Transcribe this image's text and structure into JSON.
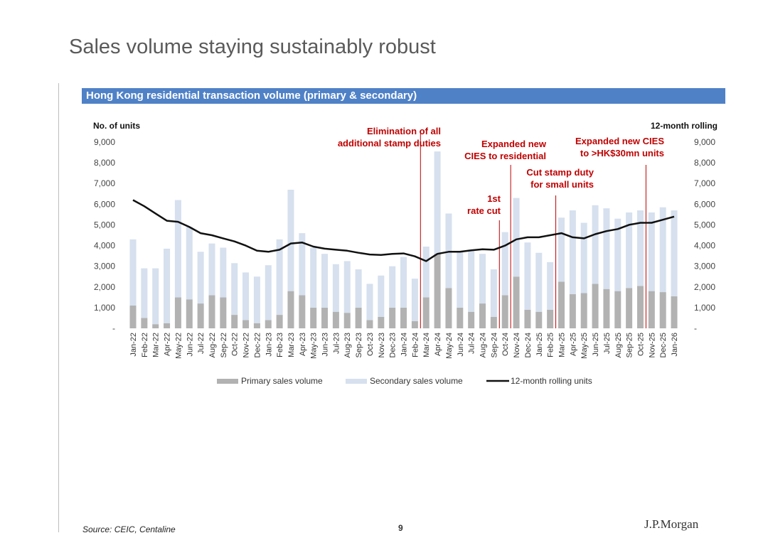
{
  "page": {
    "title": "Sales volume staying sustainably robust",
    "source": "Source: CEIC, Centaline",
    "page_number": "9",
    "logo_text": "J.P.Morgan"
  },
  "chart_data": {
    "type": "bar",
    "stacked": true,
    "title": "Hong Kong residential transaction volume (primary & secondary)",
    "ylabel": "No. of units",
    "y2label": "12-month rolling",
    "ylim": [
      0,
      9000
    ],
    "y_ticks": [
      0,
      1000,
      2000,
      3000,
      4000,
      5000,
      6000,
      7000,
      8000,
      9000
    ],
    "y_tick_labels": [
      "-",
      "1,000",
      "2,000",
      "3,000",
      "4,000",
      "5,000",
      "6,000",
      "7,000",
      "8,000",
      "9,000"
    ],
    "categories": [
      "Jan-22",
      "Feb-22",
      "Mar-22",
      "Apr-22",
      "May-22",
      "Jun-22",
      "Jul-22",
      "Aug-22",
      "Sep-22",
      "Oct-22",
      "Nov-22",
      "Dec-22",
      "Jan-23",
      "Feb-23",
      "Mar-23",
      "Apr-23",
      "May-23",
      "Jun-23",
      "Jul-23",
      "Aug-23",
      "Sep-23",
      "Oct-23",
      "Nov-23",
      "Dec-23",
      "Jan-24",
      "Feb-24",
      "Mar-24",
      "Apr-24",
      "May-24",
      "Jun-24",
      "Jul-24",
      "Aug-24",
      "Sep-24",
      "Oct-24",
      "Nov-24",
      "Dec-24",
      "Jan-25",
      "Feb-25",
      "Mar-25",
      "Apr-25",
      "May-25",
      "Jun-25",
      "Jul-25",
      "Aug-25",
      "Sep-25",
      "Oct-25",
      "Nov-25",
      "Dec-25",
      "Jan-26"
    ],
    "series": [
      {
        "name": "Primary sales volume",
        "kind": "bar",
        "color": "#b2b2b2",
        "values": [
          1100,
          500,
          200,
          250,
          1500,
          1400,
          1200,
          1600,
          1500,
          650,
          400,
          250,
          400,
          650,
          1800,
          1600,
          1000,
          1000,
          800,
          750,
          1000,
          400,
          550,
          1000,
          1000,
          350,
          1500,
          3600,
          1950,
          1000,
          800,
          1200,
          550,
          1600,
          2500,
          900,
          800,
          900,
          2250,
          1650,
          1700,
          2150,
          1900,
          1800,
          1950,
          2050,
          1800,
          1750,
          1550
        ]
      },
      {
        "name": "Secondary sales volume",
        "kind": "bar",
        "color": "#d6e0ee",
        "values": [
          3200,
          2400,
          2700,
          3600,
          4700,
          3500,
          2500,
          2500,
          2400,
          2500,
          2300,
          2250,
          2650,
          3650,
          4900,
          3000,
          2900,
          2600,
          2300,
          2500,
          1850,
          1750,
          2000,
          2000,
          2450,
          2050,
          2450,
          4950,
          3600,
          2700,
          3000,
          2400,
          2300,
          3050,
          3800,
          3250,
          2850,
          2300,
          3100,
          4050,
          3400,
          3800,
          3900,
          3500,
          3650,
          3650,
          3800,
          4100,
          4150
        ]
      },
      {
        "name": "12-month rolling units",
        "kind": "line",
        "color": "#111111",
        "values": [
          6200,
          5900,
          5550,
          5200,
          5150,
          4900,
          4600,
          4500,
          4350,
          4200,
          4000,
          3750,
          3700,
          3800,
          4100,
          4150,
          3950,
          3850,
          3800,
          3750,
          3650,
          3570,
          3550,
          3600,
          3620,
          3480,
          3250,
          3600,
          3700,
          3700,
          3770,
          3820,
          3800,
          4000,
          4300,
          4400,
          4400,
          4500,
          4600,
          4400,
          4350,
          4550,
          4700,
          4800,
          5000,
          5100,
          5100,
          5250,
          5400
        ]
      }
    ],
    "legend": [
      "Primary sales volume",
      "Secondary sales volume",
      "12-month rolling units"
    ],
    "legend_position": "bottom",
    "annotations": [
      {
        "lines": [
          "Elimination of all",
          "additional stamp duties"
        ],
        "at": "Feb-24"
      },
      {
        "lines": [
          "1st",
          "rate cut"
        ],
        "at": "Sep-24"
      },
      {
        "lines": [
          "Expanded new",
          "CIES to residential"
        ],
        "at": "Oct-24"
      },
      {
        "lines": [
          "Cut stamp duty",
          "for small units"
        ],
        "at": "Feb-25"
      },
      {
        "lines": [
          "Expanded new CIES",
          "to >HK$30mn units"
        ],
        "at": "Oct-25"
      }
    ],
    "colors": {
      "primary": "#b2b2b2",
      "secondary": "#d6e0ee",
      "line": "#111111",
      "annotation": "#c00000",
      "band": "#4f81c7"
    }
  }
}
